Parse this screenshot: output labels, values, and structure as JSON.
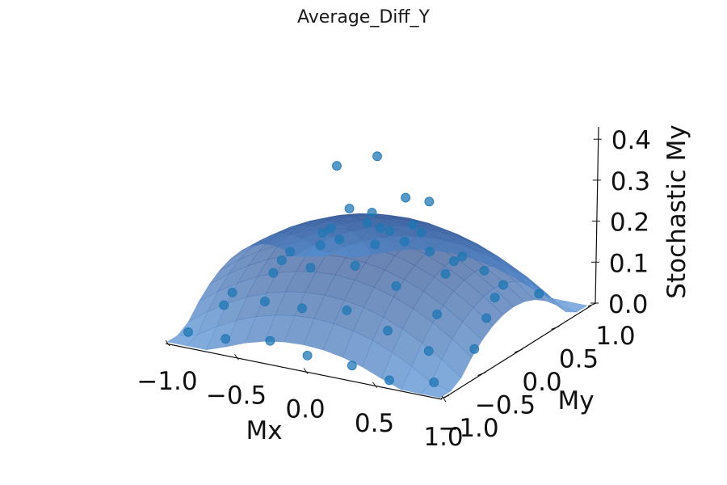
{
  "chart_data": {
    "type": "scatter",
    "subtype": "3d-scatter-with-surface",
    "title": "Average_Diff_Y",
    "xlabel": "Mx",
    "ylabel": "My",
    "zlabel": "Stochastic My",
    "xlim": [
      -1.0,
      1.0
    ],
    "ylim": [
      -1.0,
      1.0
    ],
    "zlim": [
      0.0,
      0.43
    ],
    "x_ticks": [
      "−1.0",
      "−0.5",
      "0.0",
      "0.5",
      "1.0"
    ],
    "y_ticks": [
      "−1.0",
      "−0.5",
      "0.0",
      "0.5",
      "1.0"
    ],
    "z_ticks": [
      "0.0",
      "0.1",
      "0.2",
      "0.3",
      "0.4"
    ],
    "x_tick_values": [
      -1.0,
      -0.5,
      0.0,
      0.5,
      1.0
    ],
    "y_tick_values": [
      -1.0,
      -0.5,
      0.0,
      0.5,
      1.0
    ],
    "z_tick_values": [
      0.0,
      0.1,
      0.2,
      0.3,
      0.4
    ],
    "grid": false,
    "colors": {
      "points": "#1f77b4",
      "surface": "#2a6d9e"
    },
    "surface": {
      "description_of_shape": "dome",
      "z_min": 0.0,
      "z_max": 0.25
    },
    "points": [
      {
        "x": -0.9,
        "y": -0.9,
        "z": 0.02
      },
      {
        "x": -0.6,
        "y": -0.95,
        "z": 0.03
      },
      {
        "x": -0.3,
        "y": -0.9,
        "z": 0.04
      },
      {
        "x": 0.0,
        "y": -0.95,
        "z": 0.03
      },
      {
        "x": 0.3,
        "y": -0.9,
        "z": 0.02
      },
      {
        "x": 0.6,
        "y": -0.95,
        "z": 0.01
      },
      {
        "x": 0.9,
        "y": -0.9,
        "z": 0.02
      },
      {
        "x": -0.8,
        "y": -0.6,
        "z": 0.06
      },
      {
        "x": -0.5,
        "y": -0.6,
        "z": 0.09
      },
      {
        "x": -0.2,
        "y": -0.65,
        "z": 0.1
      },
      {
        "x": 0.1,
        "y": -0.6,
        "z": 0.11
      },
      {
        "x": 0.4,
        "y": -0.6,
        "z": 0.08
      },
      {
        "x": 0.7,
        "y": -0.6,
        "z": 0.05
      },
      {
        "x": -0.9,
        "y": -0.3,
        "z": 0.05
      },
      {
        "x": -0.6,
        "y": -0.3,
        "z": 0.12
      },
      {
        "x": -0.3,
        "y": -0.35,
        "z": 0.16
      },
      {
        "x": 0.0,
        "y": -0.3,
        "z": 0.18
      },
      {
        "x": 0.3,
        "y": -0.3,
        "z": 0.15
      },
      {
        "x": 0.6,
        "y": -0.3,
        "z": 0.1
      },
      {
        "x": 0.9,
        "y": -0.35,
        "z": 0.04
      },
      {
        "x": -0.7,
        "y": 0.0,
        "z": 0.11
      },
      {
        "x": -0.4,
        "y": 0.0,
        "z": 0.2
      },
      {
        "x": -0.1,
        "y": 0.05,
        "z": 0.24
      },
      {
        "x": 0.2,
        "y": 0.0,
        "z": 0.22
      },
      {
        "x": 0.5,
        "y": 0.0,
        "z": 0.16
      },
      {
        "x": 0.8,
        "y": 0.0,
        "z": 0.07
      },
      {
        "x": -0.8,
        "y": 0.3,
        "z": 0.09
      },
      {
        "x": -0.5,
        "y": 0.3,
        "z": 0.17
      },
      {
        "x": -0.2,
        "y": 0.3,
        "z": 0.23
      },
      {
        "x": 0.1,
        "y": 0.3,
        "z": 0.22
      },
      {
        "x": 0.4,
        "y": 0.3,
        "z": 0.15
      },
      {
        "x": 0.7,
        "y": 0.3,
        "z": 0.08
      },
      {
        "x": -0.6,
        "y": 0.6,
        "z": 0.1
      },
      {
        "x": -0.3,
        "y": 0.6,
        "z": 0.15
      },
      {
        "x": 0.0,
        "y": 0.6,
        "z": 0.16
      },
      {
        "x": 0.3,
        "y": 0.6,
        "z": 0.12
      },
      {
        "x": 0.6,
        "y": 0.6,
        "z": 0.07
      },
      {
        "x": -0.9,
        "y": 0.9,
        "z": 0.03
      },
      {
        "x": -0.5,
        "y": 0.9,
        "z": 0.06
      },
      {
        "x": -0.1,
        "y": 0.9,
        "z": 0.07
      },
      {
        "x": 0.3,
        "y": 0.9,
        "z": 0.05
      },
      {
        "x": 0.7,
        "y": 0.9,
        "z": 0.02
      },
      {
        "x": 0.0,
        "y": 0.0,
        "z": 0.42
      },
      {
        "x": -0.35,
        "y": 0.1,
        "z": 0.36
      },
      {
        "x": 0.1,
        "y": 0.2,
        "z": 0.3
      },
      {
        "x": 0.3,
        "y": 0.15,
        "z": 0.31
      },
      {
        "x": -0.15,
        "y": -0.1,
        "z": 0.29
      },
      {
        "x": 0.2,
        "y": -0.2,
        "z": 0.27
      }
    ]
  }
}
